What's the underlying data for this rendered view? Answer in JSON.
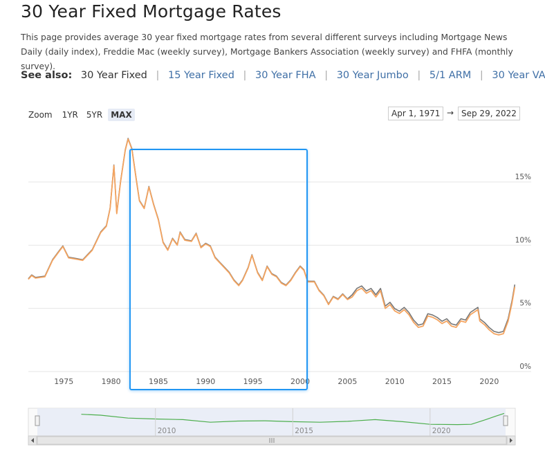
{
  "page": {
    "title": "30 Year Fixed Mortgage Rates",
    "description": "This page provides average 30 year fixed mortgage rates from several different surveys including Mortgage News Daily (daily index), Freddie Mac (weekly survey), Mortgage Bankers Association (weekly survey) and FHFA (monthly survey)."
  },
  "see_also": {
    "label": "See also:",
    "current": "30 Year Fixed",
    "links": [
      "15 Year Fixed",
      "30 Year FHA",
      "30 Year Jumbo",
      "5/1 ARM",
      "30 Year VA"
    ]
  },
  "controls": {
    "zoom_label": "Zoom",
    "zoom_buttons": [
      "1YR",
      "5YR",
      "MAX"
    ],
    "zoom_active": "MAX",
    "range_from": "Apr 1, 1971",
    "range_arrow": "→",
    "range_to": "Sep 29, 2022"
  },
  "colors": {
    "series_main": "#f4a460",
    "series_secondary": "#777777",
    "navigator_line": "#4cae4c",
    "highlight_box": "#2196f3",
    "grid": "#e6e6e6"
  },
  "chart_data": {
    "type": "line",
    "x_ticks": [
      "1975",
      "1980",
      "1985",
      "1990",
      "1995",
      "2000",
      "2005",
      "2010",
      "2015",
      "2020"
    ],
    "y_ticks": [
      "0%",
      "5%",
      "10%",
      "15%"
    ],
    "ylim": [
      0,
      19
    ],
    "xlim": [
      1971.25,
      2022.75
    ],
    "grid": true,
    "navigator": {
      "labels": [
        "2010",
        "2015",
        "2020"
      ],
      "x": [
        2007.3,
        2008,
        2009,
        2010,
        2011,
        2012,
        2013,
        2014,
        2015,
        2016,
        2017,
        2018,
        2019,
        2020,
        2021,
        2021.5,
        2022,
        2022.4,
        2022.7
      ],
      "y": [
        6.4,
        6.1,
        5.1,
        4.8,
        4.6,
        3.7,
        4.1,
        4.2,
        3.9,
        3.7,
        4.0,
        4.6,
        3.9,
        3.0,
        2.9,
        3.0,
        4.5,
        5.8,
        6.7
      ]
    },
    "series": [
      {
        "x": [
          1971.25,
          1971.6,
          1972,
          1973,
          1973.8,
          1974.5,
          1974.9,
          1975.5,
          1976.3,
          1977,
          1978,
          1978.9,
          1979.5,
          1979.9,
          1980.3,
          1980.6,
          1981,
          1981.5,
          1981.8,
          1982.2,
          1982.7,
          1983,
          1983.5,
          1984,
          1984.5,
          1985,
          1985.5,
          1986,
          1986.5,
          1987,
          1987.3,
          1987.8,
          1988.5,
          1989,
          1989.5,
          1990,
          1990.5,
          1991,
          1991.5,
          1992,
          1992.5,
          1993,
          1993.5,
          1993.9,
          1994.5,
          1994.9,
          1995.5,
          1996,
          1996.5,
          1997,
          1997.5,
          1998,
          1998.5,
          1999,
          1999.5,
          2000,
          2000.4,
          2000.8,
          2001.5,
          2002,
          2002.5,
          2003,
          2003.5,
          2004,
          2004.5,
          2005,
          2005.5,
          2006,
          2006.5,
          2007,
          2007.5,
          2008,
          2008.5,
          2009,
          2009.5,
          2010,
          2010.5,
          2011,
          2011.5,
          2012,
          2012.5,
          2013,
          2013.5,
          2014,
          2014.5,
          2015,
          2015.5,
          2016,
          2016.5,
          2017,
          2017.5,
          2018,
          2018.8,
          2019,
          2019.5,
          2020,
          2020.5,
          2021,
          2021.5,
          2022,
          2022.4,
          2022.7
        ],
        "y": [
          7.3,
          7.6,
          7.4,
          7.5,
          8.8,
          9.5,
          9.9,
          9.0,
          8.9,
          8.8,
          9.6,
          11.0,
          11.5,
          12.9,
          16.3,
          12.5,
          15.0,
          17.5,
          18.4,
          17.6,
          15.0,
          13.5,
          12.9,
          14.6,
          13.2,
          12.0,
          10.2,
          9.6,
          10.5,
          10.0,
          11.0,
          10.4,
          10.3,
          10.9,
          9.8,
          10.1,
          9.9,
          9.0,
          8.6,
          8.2,
          7.8,
          7.2,
          6.8,
          7.2,
          8.2,
          9.2,
          7.8,
          7.2,
          8.3,
          7.7,
          7.5,
          7.0,
          6.8,
          7.2,
          7.8,
          8.3,
          8.0,
          7.1,
          7.1,
          6.4,
          6.0,
          5.3,
          5.9,
          5.7,
          6.1,
          5.7,
          5.9,
          6.4,
          6.6,
          6.2,
          6.4,
          5.9,
          6.4,
          5.0,
          5.3,
          4.8,
          4.6,
          4.9,
          4.5,
          3.9,
          3.5,
          3.6,
          4.4,
          4.3,
          4.1,
          3.8,
          4.0,
          3.6,
          3.5,
          4.0,
          3.9,
          4.5,
          4.9,
          4.0,
          3.7,
          3.3,
          3.0,
          2.9,
          3.0,
          4.0,
          5.4,
          6.7
        ]
      }
    ]
  }
}
